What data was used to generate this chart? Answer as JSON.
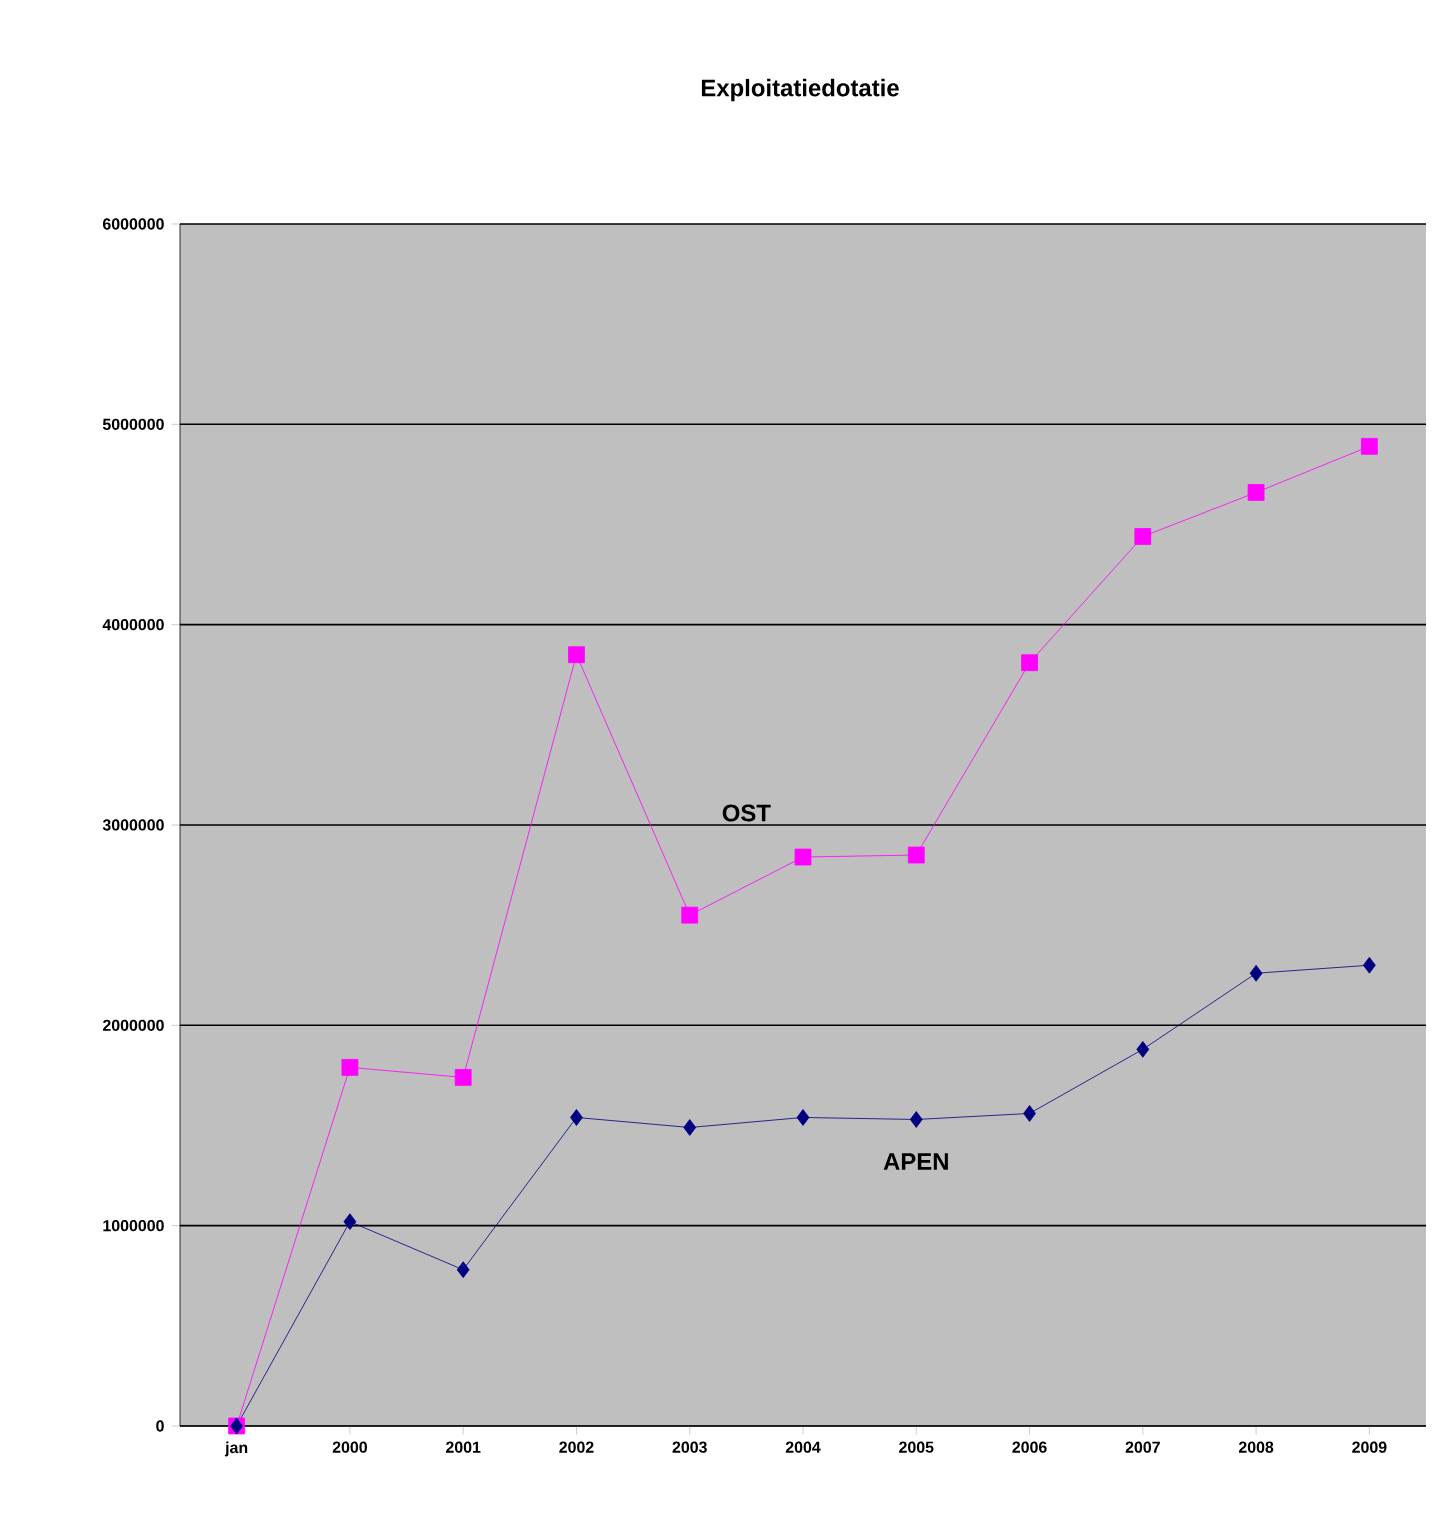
{
  "chart_data": {
    "type": "line",
    "title": "Exploitatiedotatie",
    "categories": [
      "jan",
      "2000",
      "2001",
      "2002",
      "2003",
      "2004",
      "2005",
      "2006",
      "2007",
      "2008",
      "2009"
    ],
    "series": [
      {
        "name": "OST",
        "color": "#ff00ff",
        "marker": "square",
        "values": [
          0,
          1790000,
          1740000,
          3850000,
          2550000,
          2840000,
          2850000,
          3810000,
          4440000,
          4660000,
          4890000
        ]
      },
      {
        "name": "APEN",
        "color": "#000080",
        "marker": "diamond",
        "values": [
          0,
          1020000,
          780000,
          1540000,
          1490000,
          1540000,
          1530000,
          1560000,
          1880000,
          2260000,
          2300000
        ]
      }
    ],
    "ylim": [
      0,
      6000000
    ],
    "yticks": [
      0,
      1000000,
      2000000,
      3000000,
      4000000,
      5000000,
      6000000
    ],
    "grid": "y",
    "line_style": "solid"
  }
}
